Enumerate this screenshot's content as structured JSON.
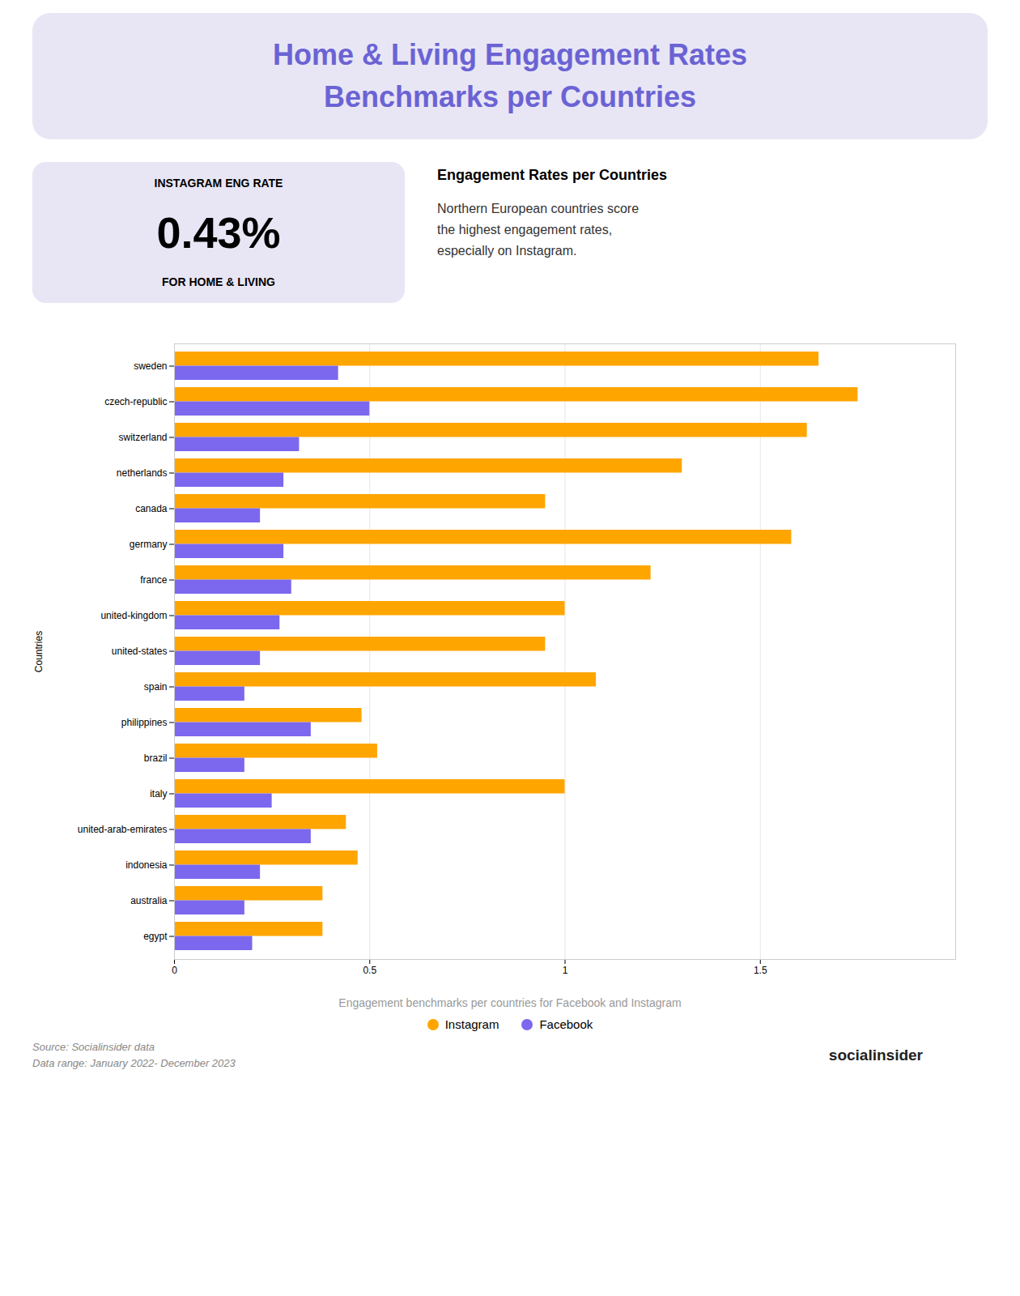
{
  "chart_data": {
    "type": "bar",
    "orientation": "horizontal",
    "title": "Home & Living Engagement Rates\nBenchmarks per Countries",
    "subtitle": "Engagement benchmarks per countries for Facebook and Instagram",
    "annotations": [
      "INSTAGRAM ENG RATE",
      "0.43%",
      "FOR HOME & LIVING",
      "Engagement Rates per Countries",
      "Northern European countries score\nthe highest engagement rates,\nespecially on Instagram.",
      "Source: Socialinsider data",
      "Data range: January 2022- December 2023",
      "socialinsider"
    ],
    "ylabel": "Countries",
    "categories": [
      "sweden",
      "czech-republic",
      "switzerland",
      "netherlands",
      "canada",
      "germany",
      "france",
      "united-kingdom",
      "united-states",
      "spain",
      "philippines",
      "brazil",
      "italy",
      "united-arab-emirates",
      "indonesia",
      "australia",
      "egypt"
    ],
    "series": [
      {
        "name": "Instagram",
        "color": "#FFA500",
        "values": [
          1.65,
          1.75,
          1.62,
          1.3,
          0.95,
          1.58,
          1.22,
          1.0,
          0.95,
          1.08,
          0.48,
          0.52,
          1.0,
          0.44,
          0.47,
          0.38,
          0.38
        ]
      },
      {
        "name": "Facebook",
        "color": "#7B68EE",
        "values": [
          0.42,
          0.5,
          0.32,
          0.28,
          0.22,
          0.28,
          0.3,
          0.27,
          0.22,
          0.18,
          0.35,
          0.18,
          0.25,
          0.35,
          0.22,
          0.18,
          0.2
        ]
      }
    ],
    "xlim": [
      0,
      2.0
    ],
    "xticks": [
      0,
      0.5,
      1,
      1.5
    ],
    "grid": true,
    "legend": "bottom"
  }
}
